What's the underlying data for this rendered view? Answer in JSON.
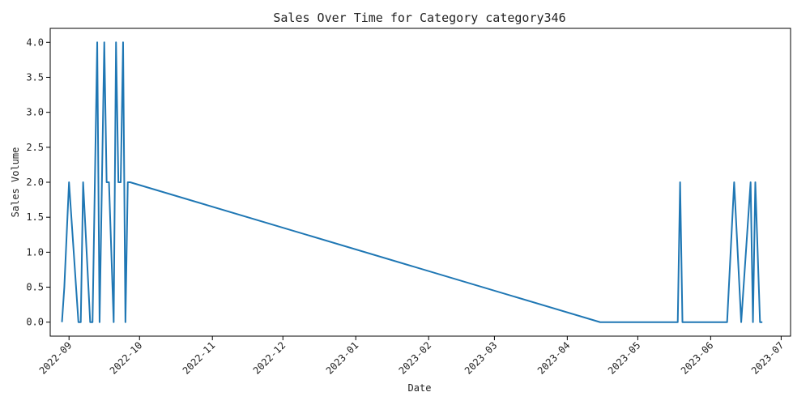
{
  "chart_data": {
    "type": "line",
    "title": "Sales Over Time for Category category346",
    "xlabel": "Date",
    "ylabel": "Sales Volume",
    "grid": false,
    "x_axis": {
      "type": "date",
      "range": [
        "2022-08-24",
        "2023-07-05"
      ],
      "ticks": [
        "2022-09-01",
        "2022-10-01",
        "2022-11-01",
        "2022-12-01",
        "2023-01-01",
        "2023-02-01",
        "2023-03-01",
        "2023-04-01",
        "2023-05-01",
        "2023-06-01",
        "2023-07-01"
      ],
      "tick_labels": [
        "2022-09",
        "2022-10",
        "2022-11",
        "2022-12",
        "2023-01",
        "2023-02",
        "2023-03",
        "2023-04",
        "2023-05",
        "2023-06",
        "2023-07"
      ]
    },
    "y_axis": {
      "range": [
        -0.2,
        4.2
      ],
      "ticks": [
        0,
        0.5,
        1,
        1.5,
        2,
        2.5,
        3,
        3.5,
        4
      ],
      "tick_labels": [
        "0.0",
        "0.5",
        "1.0",
        "1.5",
        "2.0",
        "2.5",
        "3.0",
        "3.5",
        "4.0"
      ]
    },
    "series": [
      {
        "color": "#1f77b4",
        "points": [
          [
            "2022-08-29",
            0
          ],
          [
            "2022-08-30",
            0.5
          ],
          [
            "2022-09-01",
            2
          ],
          [
            "2022-09-03",
            1
          ],
          [
            "2022-09-05",
            0
          ],
          [
            "2022-09-06",
            0
          ],
          [
            "2022-09-07",
            2
          ],
          [
            "2022-09-10",
            0
          ],
          [
            "2022-09-11",
            0
          ],
          [
            "2022-09-13",
            4
          ],
          [
            "2022-09-14",
            0
          ],
          [
            "2022-09-16",
            4
          ],
          [
            "2022-09-17",
            2
          ],
          [
            "2022-09-18",
            2
          ],
          [
            "2022-09-20",
            0
          ],
          [
            "2022-09-21",
            4
          ],
          [
            "2022-09-22",
            2
          ],
          [
            "2022-09-23",
            2
          ],
          [
            "2022-09-24",
            4
          ],
          [
            "2022-09-25",
            0
          ],
          [
            "2022-09-26",
            2
          ],
          [
            "2022-09-27",
            2
          ],
          [
            "2023-04-15",
            0
          ],
          [
            "2023-05-18",
            0
          ],
          [
            "2023-05-19",
            2
          ],
          [
            "2023-05-20",
            0
          ],
          [
            "2023-06-08",
            0
          ],
          [
            "2023-06-11",
            2
          ],
          [
            "2023-06-14",
            0
          ],
          [
            "2023-06-18",
            2
          ],
          [
            "2023-06-19",
            0
          ],
          [
            "2023-06-20",
            2
          ],
          [
            "2023-06-22",
            0
          ],
          [
            "2023-06-23",
            0
          ]
        ]
      }
    ]
  }
}
